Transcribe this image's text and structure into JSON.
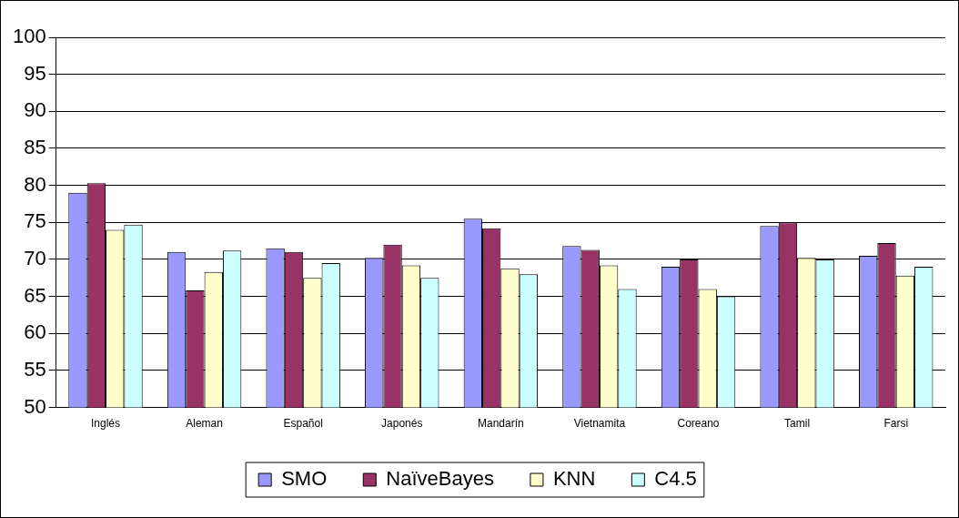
{
  "chart_data": {
    "type": "bar",
    "categories": [
      "Inglés",
      "Aleman",
      "Español",
      "Japonés",
      "Mandarín",
      "Vietnamita",
      "Coreano",
      "Tamil",
      "Farsi"
    ],
    "series": [
      {
        "name": "SMO",
        "color": "#9999ff",
        "values": [
          79,
          71,
          71.5,
          70.2,
          75.5,
          71.8,
          69,
          74.5,
          70.5
        ]
      },
      {
        "name": "NaïveBayes",
        "color": "#993366",
        "values": [
          80.3,
          65.8,
          71,
          72,
          74.2,
          71.3,
          70,
          75,
          72.2
        ]
      },
      {
        "name": "KNN",
        "color": "#ffffcc",
        "values": [
          74,
          68.3,
          67.5,
          69.2,
          68.8,
          69.2,
          66,
          70.2,
          67.8
        ]
      },
      {
        "name": "C4.5",
        "color": "#ccffff",
        "values": [
          74.7,
          71.2,
          69.5,
          67.5,
          68,
          66,
          65,
          70,
          69
        ]
      }
    ],
    "ylim": [
      50,
      100
    ],
    "yticks": [
      50,
      55,
      60,
      65,
      70,
      75,
      80,
      85,
      90,
      95,
      100
    ],
    "grid": "y",
    "legend": "bottom"
  }
}
